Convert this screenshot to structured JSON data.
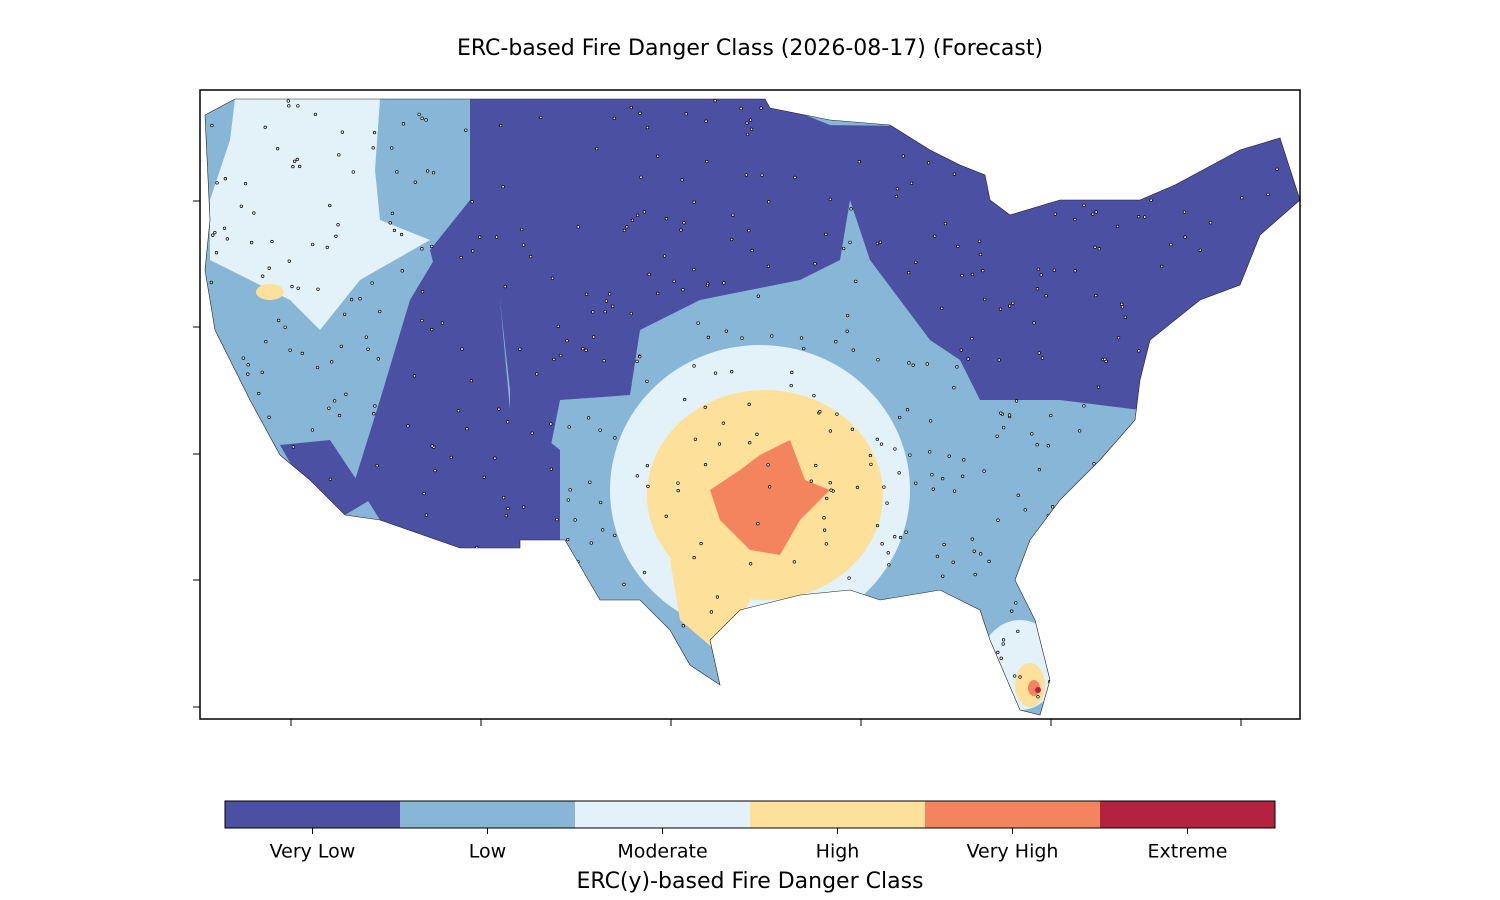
{
  "title": "ERC-based Fire Danger Class (2026-08-17) (Forecast)",
  "colorbar": {
    "label": "ERC(y)-based Fire Danger Class",
    "classes": [
      {
        "name": "Very Low",
        "color": "#4b50a2"
      },
      {
        "name": "Low",
        "color": "#88b6d7"
      },
      {
        "name": "Moderate",
        "color": "#e2f2f8"
      },
      {
        "name": "High",
        "color": "#fde19b"
      },
      {
        "name": "Very High",
        "color": "#f4845e"
      },
      {
        "name": "Extreme",
        "color": "#b3233f"
      }
    ]
  }
}
